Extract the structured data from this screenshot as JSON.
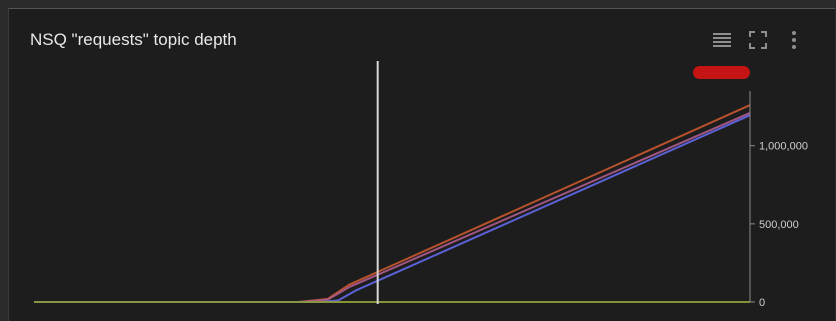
{
  "panel": {
    "title": "NSQ \"requests\" topic depth"
  },
  "toolbar": {
    "icons": [
      "list-icon",
      "fullscreen-icon",
      "more-vert-icon"
    ]
  },
  "colors": {
    "background": "#1d1d1d",
    "axis": "#8a8a8a",
    "cursor": "#d8d8d8",
    "baseline": "#7a8a3a",
    "legend_marker": "#c41414"
  },
  "chart_data": {
    "type": "line",
    "title": "NSQ \"requests\" topic depth",
    "xlabel": "",
    "ylabel": "",
    "ylim": [
      0,
      1350000
    ],
    "y_axis_side": "right",
    "y_ticks": [
      0,
      500000,
      1000000
    ],
    "y_tick_labels": [
      "0",
      "500,000",
      "1,000,000"
    ],
    "grid": false,
    "legend": "top-right",
    "x_domain": [
      0,
      100
    ],
    "cursor_x": 48,
    "series": [
      {
        "color": "#c0552e",
        "x": [
          0,
          37,
          41,
          44,
          100
        ],
        "values": [
          0,
          0,
          20000,
          110000,
          1260000
        ]
      },
      {
        "color": "#a85a88",
        "x": [
          0,
          37,
          41,
          44,
          100
        ],
        "values": [
          0,
          0,
          15000,
          95000,
          1210000
        ]
      },
      {
        "color": "#5f66e0",
        "x": [
          0,
          40,
          42.5,
          45,
          100
        ],
        "values": [
          0,
          0,
          10000,
          75000,
          1195000
        ]
      },
      {
        "color": "#8a9a3a",
        "x": [
          0,
          100
        ],
        "values": [
          0,
          0
        ]
      }
    ]
  }
}
